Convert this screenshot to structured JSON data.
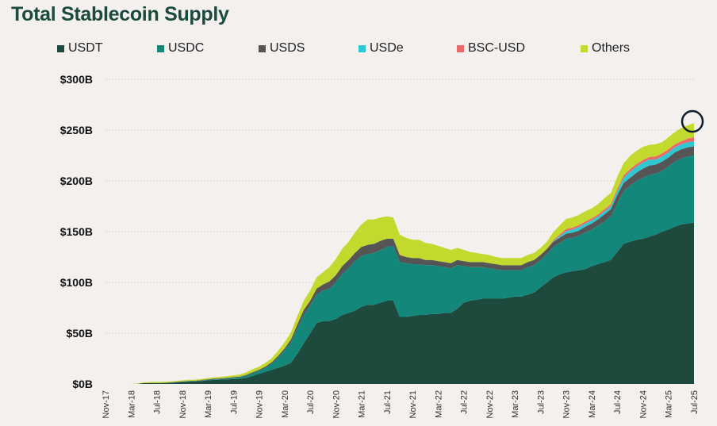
{
  "chart_data": {
    "type": "area",
    "stacked": true,
    "title": "Total Stablecoin Supply",
    "xlabel": "",
    "ylabel": "",
    "ylim": [
      0,
      300
    ],
    "yticks": [
      0,
      50,
      100,
      150,
      200,
      250,
      300
    ],
    "ytick_labels": [
      "$0B",
      "$50B",
      "$100B",
      "$150B",
      "$200B",
      "$250B",
      "$300B"
    ],
    "xtick_labels": [
      "Nov-17",
      "Mar-18",
      "Jul-18",
      "Nov-18",
      "Mar-19",
      "Jul-19",
      "Nov-19",
      "Mar-20",
      "Jul-20",
      "Nov-20",
      "Mar-21",
      "Jul-21",
      "Nov-21",
      "Mar-22",
      "Jul-22",
      "Nov-22",
      "Mar-23",
      "Jul-23",
      "Nov-23",
      "Mar-24",
      "Jul-24",
      "Nov-24",
      "Mar-25",
      "Jul-25"
    ],
    "grid": true,
    "legend_position": "top",
    "annotation": "circle-highlight-latest",
    "x": [
      0,
      1,
      2,
      3,
      4,
      5,
      6,
      7,
      8,
      9,
      10,
      11,
      12,
      13,
      14,
      15,
      16,
      17,
      18,
      19,
      20,
      21,
      22,
      23,
      24,
      25,
      26,
      27,
      28,
      29,
      30,
      31,
      32,
      33,
      34,
      35,
      36,
      37,
      38,
      39,
      40,
      41,
      42,
      43,
      44,
      45,
      46,
      47,
      48,
      49,
      50,
      51,
      52,
      53,
      54,
      55,
      56,
      57,
      58,
      59,
      60,
      61,
      62,
      63,
      64,
      65,
      66,
      67,
      68,
      69,
      70,
      71,
      72,
      73,
      74,
      75,
      76,
      77,
      78,
      79,
      80,
      81,
      82,
      83,
      84,
      85,
      86,
      87,
      88,
      89,
      90,
      91,
      92
    ],
    "series": [
      {
        "name": "USDT",
        "color": "#1e4a3d",
        "values": [
          0,
          0,
          0,
          0,
          0,
          0,
          1,
          1,
          1,
          1,
          1.2,
          1.5,
          2,
          2.3,
          2.5,
          3,
          3.5,
          4,
          4.2,
          4.5,
          4.8,
          5,
          6,
          8,
          10,
          12,
          14,
          16,
          18,
          21,
          30,
          40,
          50,
          60,
          62,
          62,
          64,
          68,
          70,
          72,
          76,
          78,
          78,
          80,
          82,
          82,
          66,
          66,
          67,
          68,
          68,
          69,
          69,
          70,
          70,
          74,
          80,
          82,
          83,
          84,
          84,
          84,
          84,
          85,
          86,
          86,
          88,
          90,
          95,
          100,
          105,
          108,
          110,
          111,
          112,
          113,
          116,
          118,
          120,
          122,
          130,
          138,
          140,
          142,
          143,
          145,
          147,
          150,
          152,
          155,
          157,
          158,
          159
        ]
      },
      {
        "name": "USDC",
        "color": "#13877a",
        "values": [
          0,
          0,
          0,
          0,
          0,
          0,
          0,
          0,
          0,
          0.1,
          0.2,
          0.3,
          0.4,
          0.4,
          0.4,
          0.5,
          0.6,
          0.7,
          0.8,
          1,
          1.2,
          1.5,
          2,
          2.5,
          3,
          4,
          6,
          10,
          15,
          20,
          25,
          28,
          27,
          28,
          30,
          32,
          36,
          40,
          44,
          49,
          50,
          50,
          51,
          52,
          53,
          54,
          54,
          53,
          51,
          50,
          49,
          48,
          47,
          45,
          44,
          43,
          36,
          33,
          32,
          31,
          30,
          29,
          28,
          27,
          26,
          26,
          27,
          27,
          27,
          28,
          30,
          31,
          33,
          33,
          34,
          36,
          36,
          38,
          40,
          43,
          48,
          52,
          55,
          58,
          60,
          61,
          60,
          60,
          62,
          64,
          65,
          66,
          66
        ]
      },
      {
        "name": "USDS",
        "color": "#555555",
        "values": [
          0,
          0,
          0,
          0,
          0,
          0,
          0,
          0,
          0,
          0,
          0,
          0.2,
          0.2,
          0.3,
          0.3,
          0.3,
          0.5,
          0.5,
          0.5,
          0.6,
          0.7,
          0.8,
          0.9,
          1,
          1,
          1.2,
          1.5,
          1.8,
          2,
          3,
          4,
          5,
          5,
          6,
          6,
          7,
          7,
          8,
          8,
          8,
          9,
          9,
          9,
          9,
          8,
          7,
          7,
          6,
          6,
          6,
          5,
          5,
          5,
          5,
          5,
          5,
          5,
          5,
          5,
          5,
          5,
          5,
          5,
          5,
          5,
          5,
          5,
          5,
          5,
          5,
          5,
          5,
          5,
          5,
          5,
          6,
          6,
          6,
          7,
          7,
          8,
          8,
          8,
          8,
          9,
          9,
          9,
          9,
          9,
          9,
          9,
          9,
          9
        ]
      },
      {
        "name": "USDe",
        "color": "#2ec8d0",
        "values": [
          0,
          0,
          0,
          0,
          0,
          0,
          0,
          0,
          0,
          0,
          0,
          0,
          0,
          0,
          0,
          0,
          0,
          0,
          0,
          0,
          0,
          0,
          0,
          0,
          0,
          0,
          0,
          0,
          0,
          0,
          0,
          0,
          0,
          0,
          0,
          0,
          0,
          0,
          0,
          0,
          0,
          0,
          0,
          0,
          0,
          0,
          0,
          0,
          0,
          0,
          0,
          0,
          0,
          0,
          0,
          0,
          0,
          0,
          0,
          0,
          0,
          0,
          0,
          0,
          0,
          0,
          0,
          0,
          0,
          0,
          0.5,
          1.5,
          2.5,
          3,
          3.5,
          3,
          3,
          3,
          3,
          3,
          4,
          5,
          6,
          6,
          6,
          6,
          5,
          5,
          5,
          5,
          5,
          5,
          5
        ]
      },
      {
        "name": "BSC-USD",
        "color": "#ee6a6a",
        "values": [
          0,
          0,
          0,
          0,
          0,
          0,
          0,
          0,
          0,
          0,
          0,
          0,
          0,
          0,
          0,
          0,
          0,
          0,
          0,
          0,
          0,
          0,
          0,
          0,
          0,
          0,
          0,
          0,
          0,
          0,
          0,
          0,
          0,
          0,
          0,
          0,
          0,
          0,
          0,
          0,
          0,
          0,
          0,
          0,
          0,
          0,
          0,
          0,
          0,
          0,
          0,
          0,
          0,
          0,
          0,
          0,
          0,
          0,
          0,
          0,
          0,
          0,
          0,
          0,
          0,
          0,
          0,
          0,
          0,
          0,
          1,
          1.5,
          2,
          2,
          2,
          2,
          2,
          2,
          2,
          2,
          2,
          2.5,
          2.5,
          2.5,
          2.5,
          2.5,
          3,
          3,
          3,
          3,
          3,
          3.5,
          4
        ]
      },
      {
        "name": "Others",
        "color": "#c3d92e",
        "values": [
          0,
          0,
          0,
          0,
          0,
          0.5,
          0.5,
          1,
          1,
          1,
          1,
          1,
          1,
          1,
          1,
          1.2,
          1.2,
          1.3,
          1.5,
          1.5,
          1.8,
          2,
          2.5,
          3,
          3,
          3.5,
          4,
          5,
          6,
          7,
          8,
          9,
          10,
          11,
          12,
          14,
          16,
          17,
          18,
          20,
          22,
          25,
          24,
          23,
          22,
          21,
          20,
          19,
          18,
          18,
          17,
          16,
          15,
          14,
          13,
          12,
          11,
          10,
          9,
          8,
          8,
          7,
          7,
          7,
          7,
          7,
          7,
          7,
          7,
          7,
          8,
          9,
          10,
          10,
          10,
          10,
          10,
          10,
          11,
          11,
          12,
          12,
          13,
          13,
          13,
          12,
          12,
          11,
          12,
          12,
          13,
          13,
          14
        ]
      }
    ]
  }
}
